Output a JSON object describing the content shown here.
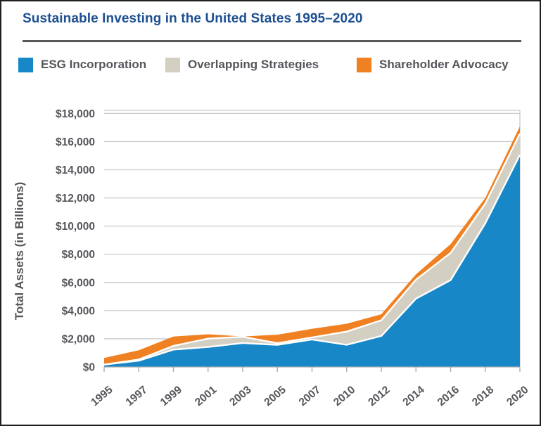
{
  "title": "Sustainable Investing in the United States 1995–2020",
  "legend": [
    {
      "label": "ESG Incorporation",
      "color": "#1787C8"
    },
    {
      "label": "Overlapping Strategies",
      "color": "#D3CFC2"
    },
    {
      "label": "Shareholder Advocacy",
      "color": "#F08122"
    }
  ],
  "y_axis": {
    "title": "Total Assets (in Billions)",
    "tick_labels": [
      "$0",
      "$2,000",
      "$4,000",
      "$6,000",
      "$8,000",
      "$10,000",
      "$12,000",
      "$14,000",
      "$16,000",
      "$18,000"
    ],
    "tick_values": [
      0,
      2000,
      4000,
      6000,
      8000,
      10000,
      12000,
      14000,
      16000,
      18000
    ]
  },
  "x_axis": {
    "tick_labels": [
      "1995",
      "1997",
      "1999",
      "2001",
      "2003",
      "2005",
      "2007",
      "2010",
      "2012",
      "2014",
      "2016",
      "2018",
      "2020"
    ]
  },
  "chart_data": {
    "type": "area",
    "stacked": true,
    "title": "Sustainable Investing in the United States 1995–2020",
    "xlabel": "",
    "ylabel": "Total Assets (in Billions)",
    "ylim": [
      0,
      18400
    ],
    "grid": true,
    "legend_position": "top",
    "categories": [
      "1995",
      "1997",
      "1999",
      "2001",
      "2003",
      "2005",
      "2007",
      "2010",
      "2012",
      "2014",
      "2016",
      "2018",
      "2020"
    ],
    "series": [
      {
        "name": "ESG Incorporation",
        "color": "#1787C8",
        "values": [
          166,
          445,
          1232,
          1418,
          1702,
          1568,
          1947,
          1572,
          2203,
          4852,
          6163,
          10200,
          15063
        ]
      },
      {
        "name": "Overlapping Strategies",
        "color": "#D3CFC2",
        "values": [
          0,
          84,
          265,
          592,
          441,
          117,
          151,
          940,
          1111,
          1348,
          1934,
          1400,
          1509
        ]
      },
      {
        "name": "Shareholder Advocacy",
        "color": "#F08122",
        "values": [
          473,
          656,
          662,
          313,
          21,
          605,
          613,
          557,
          430,
          372,
          626,
          400,
          509
        ]
      }
    ],
    "stacked_totals": [
      639,
      1185,
      2159,
      2323,
      2164,
      2290,
      2711,
      3069,
      3744,
      6572,
      8723,
      12000,
      17081
    ]
  },
  "style_colors": {
    "title_blue": "#1d4f91",
    "axis_text": "#55565b",
    "gridline": "#c9cacb",
    "tick": "#a6a9ab",
    "rule": "#58595b",
    "separator": "#ffffff"
  }
}
